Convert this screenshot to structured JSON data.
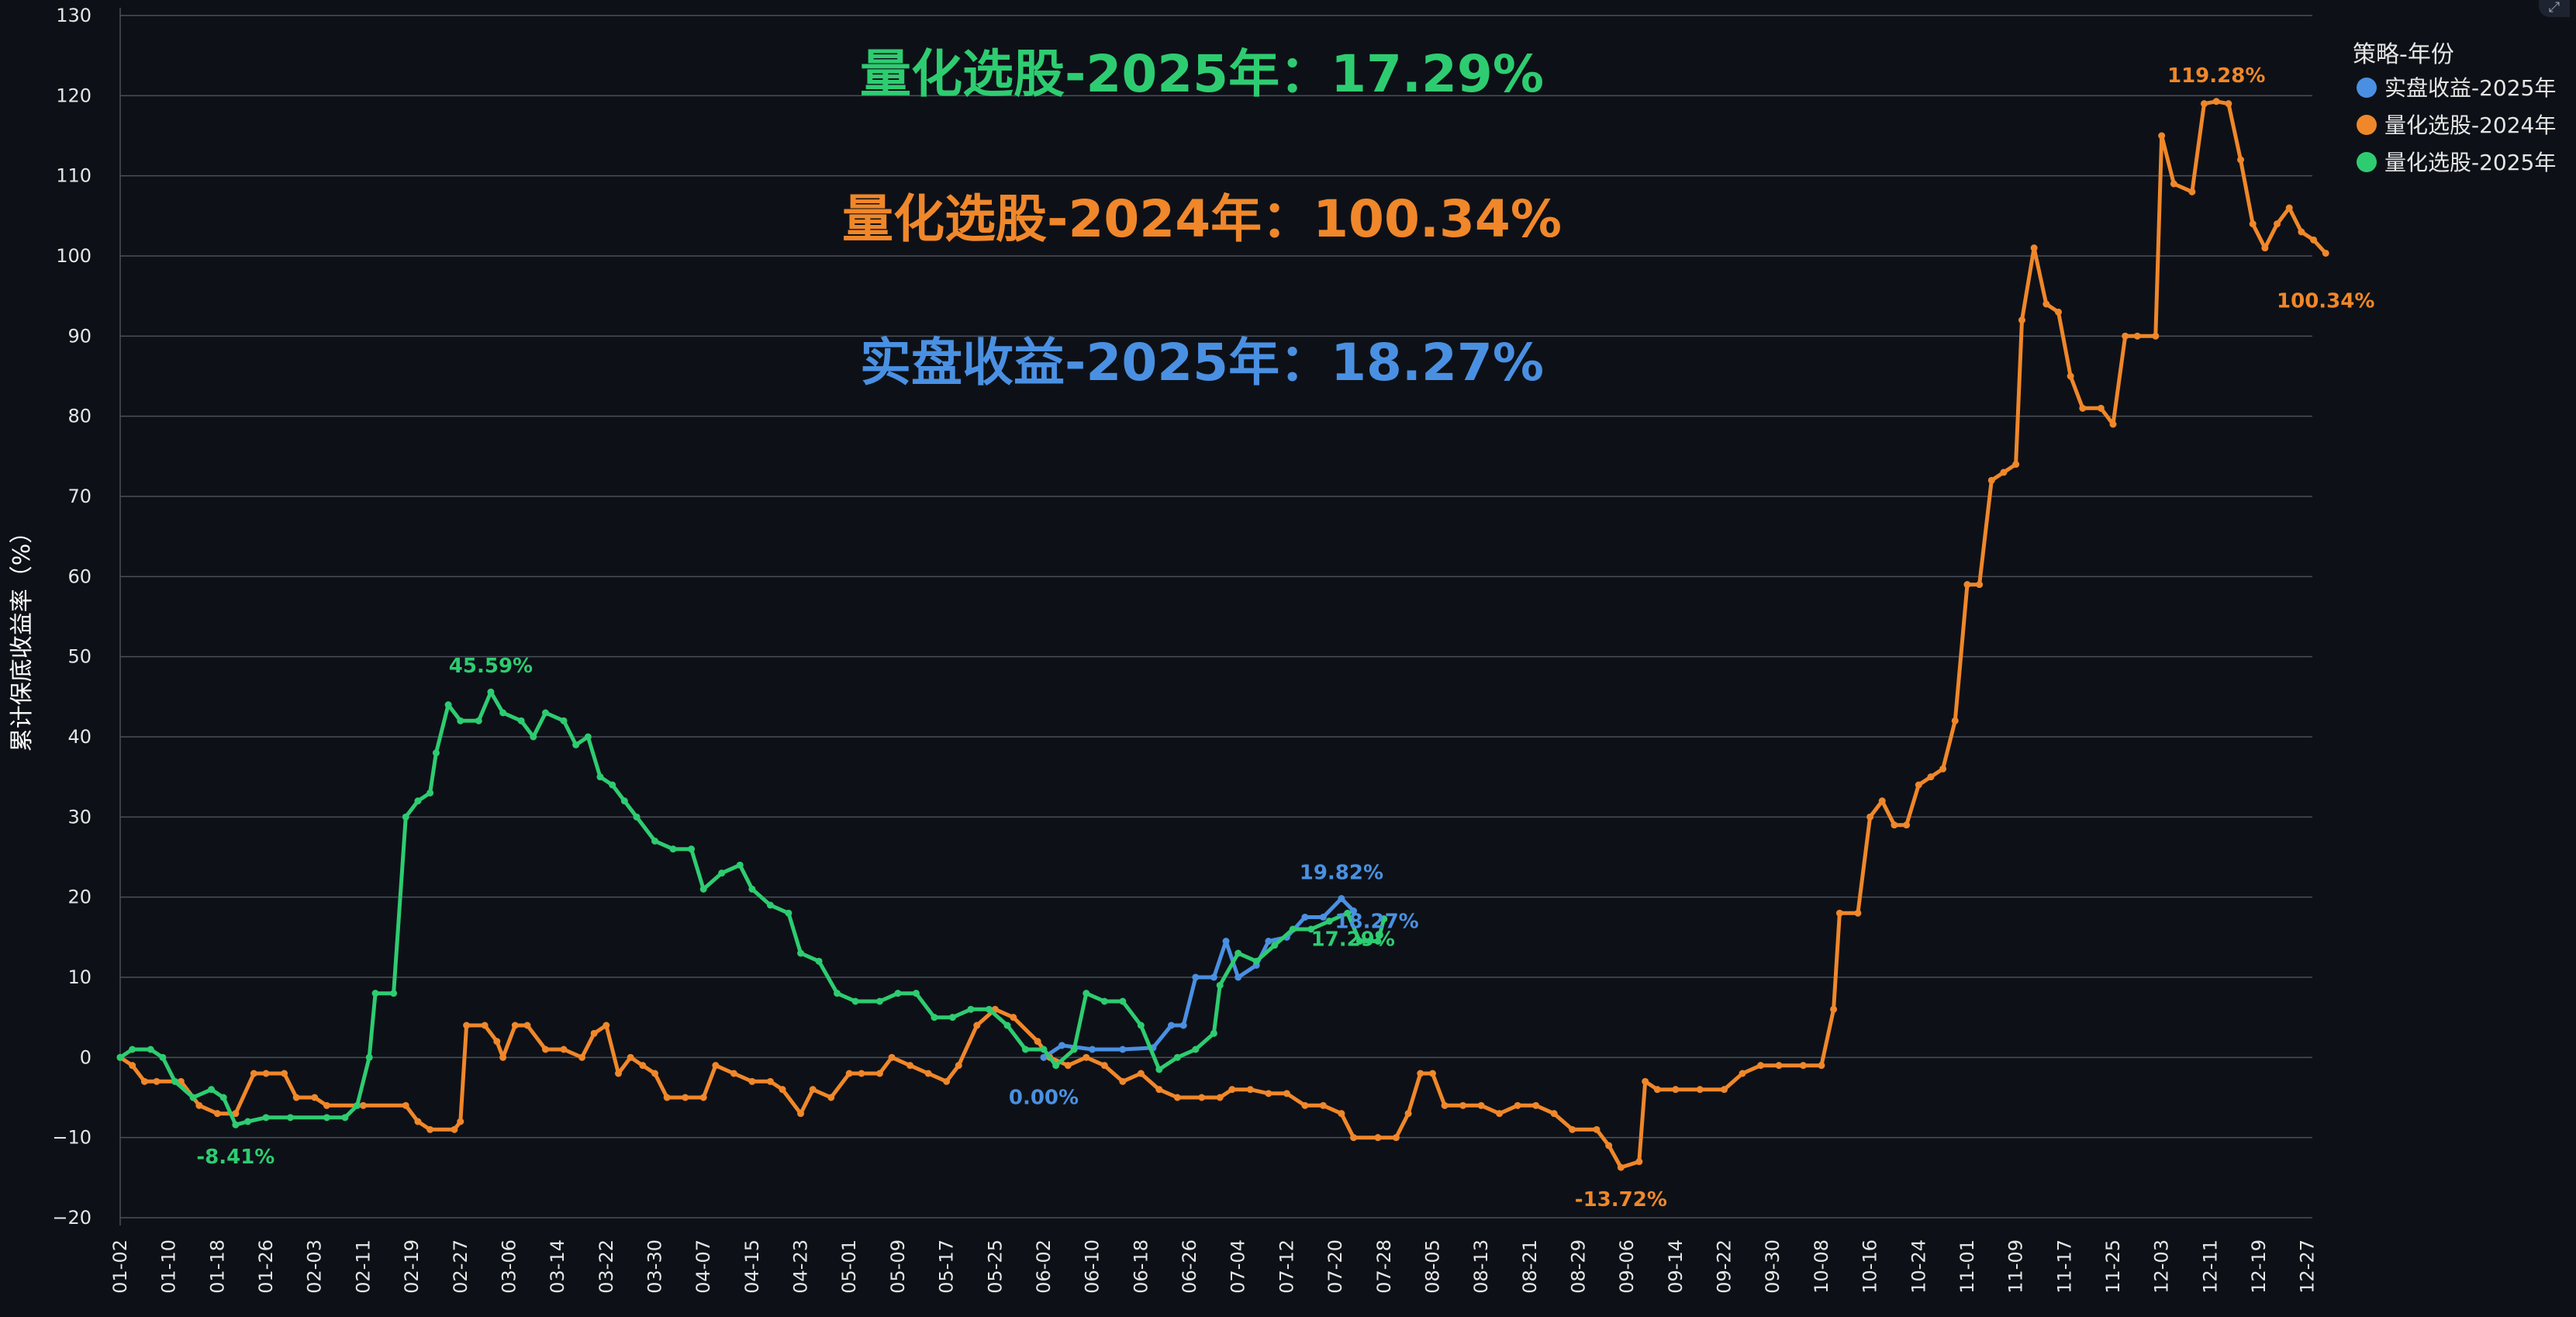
{
  "chart_data": {
    "type": "line",
    "ylabel": "累计保底收益率（%）",
    "ylim": [
      -20,
      130
    ],
    "yticks": [
      -20,
      -10,
      0,
      10,
      20,
      30,
      40,
      50,
      60,
      70,
      80,
      90,
      100,
      110,
      120,
      130
    ],
    "x_ticks": [
      "01-02",
      "01-10",
      "01-18",
      "01-26",
      "02-03",
      "02-11",
      "02-19",
      "02-27",
      "03-06",
      "03-14",
      "03-22",
      "03-30",
      "04-07",
      "04-15",
      "04-23",
      "05-01",
      "05-09",
      "05-17",
      "05-25",
      "06-02",
      "06-10",
      "06-18",
      "06-26",
      "07-04",
      "07-12",
      "07-20",
      "07-28",
      "08-05",
      "08-13",
      "08-21",
      "08-29",
      "09-06",
      "09-14",
      "09-22",
      "09-30",
      "10-08",
      "10-16",
      "10-24",
      "11-01",
      "11-09",
      "11-17",
      "11-25",
      "12-03",
      "12-11",
      "12-19",
      "12-27"
    ],
    "grid": true,
    "legend": {
      "title": "策略-年份",
      "position": "top-right"
    },
    "headlines": [
      {
        "text": "量化选股-2025年：17.29%",
        "color": "#2ecc71"
      },
      {
        "text": "量化选股-2024年：100.34%",
        "color": "#f0872a"
      },
      {
        "text": "实盘收益-2025年：18.27%",
        "color": "#4a90e2"
      }
    ],
    "series": [
      {
        "name": "实盘收益-2025年",
        "color": "#4a90e2",
        "points": [
          [
            "06-02",
            0.0
          ],
          [
            "06-05",
            1.5
          ],
          [
            "06-10",
            1.0
          ],
          [
            "06-15",
            1.0
          ],
          [
            "06-20",
            1.2
          ],
          [
            "06-23",
            4.0
          ],
          [
            "06-25",
            4.0
          ],
          [
            "06-27",
            10.0
          ],
          [
            "06-30",
            10.0
          ],
          [
            "07-02",
            14.5
          ],
          [
            "07-04",
            10.0
          ],
          [
            "07-07",
            11.5
          ],
          [
            "07-09",
            14.5
          ],
          [
            "07-12",
            15.0
          ],
          [
            "07-15",
            17.5
          ],
          [
            "07-18",
            17.5
          ],
          [
            "07-21",
            19.82
          ],
          [
            "07-23",
            18.27
          ]
        ],
        "annotations": [
          {
            "x": "06-02",
            "y": 0.0,
            "text": "0.00%"
          },
          {
            "x": "07-21",
            "y": 19.82,
            "text": "19.82%"
          },
          {
            "x": "07-23",
            "y": 18.27,
            "text": "18.27%"
          }
        ]
      },
      {
        "name": "量化选股-2024年",
        "color": "#f0872a",
        "points": [
          [
            "01-02",
            0
          ],
          [
            "01-04",
            -1
          ],
          [
            "01-06",
            -3
          ],
          [
            "01-08",
            -3
          ],
          [
            "01-12",
            -3
          ],
          [
            "01-15",
            -6
          ],
          [
            "01-18",
            -7
          ],
          [
            "01-21",
            -7
          ],
          [
            "01-24",
            -2
          ],
          [
            "01-26",
            -2
          ],
          [
            "01-29",
            -2
          ],
          [
            "01-31",
            -5
          ],
          [
            "02-03",
            -5
          ],
          [
            "02-05",
            -6
          ],
          [
            "02-11",
            -6
          ],
          [
            "02-18",
            -6
          ],
          [
            "02-20",
            -8
          ],
          [
            "02-22",
            -9
          ],
          [
            "02-26",
            -9
          ],
          [
            "02-27",
            -8
          ],
          [
            "02-28",
            4
          ],
          [
            "03-02",
            4
          ],
          [
            "03-04",
            2
          ],
          [
            "03-05",
            0
          ],
          [
            "03-07",
            4
          ],
          [
            "03-09",
            4
          ],
          [
            "03-12",
            1
          ],
          [
            "03-15",
            1
          ],
          [
            "03-18",
            0
          ],
          [
            "03-20",
            3
          ],
          [
            "03-22",
            4
          ],
          [
            "03-24",
            -2
          ],
          [
            "03-26",
            0
          ],
          [
            "03-28",
            -1
          ],
          [
            "03-30",
            -2
          ],
          [
            "04-01",
            -5
          ],
          [
            "04-04",
            -5
          ],
          [
            "04-07",
            -5
          ],
          [
            "04-09",
            -1
          ],
          [
            "04-12",
            -2
          ],
          [
            "04-15",
            -3
          ],
          [
            "04-18",
            -3
          ],
          [
            "04-20",
            -4
          ],
          [
            "04-23",
            -7
          ],
          [
            "04-25",
            -4
          ],
          [
            "04-28",
            -5
          ],
          [
            "05-01",
            -2
          ],
          [
            "05-03",
            -2
          ],
          [
            "05-06",
            -2
          ],
          [
            "05-08",
            0
          ],
          [
            "05-11",
            -1
          ],
          [
            "05-14",
            -2
          ],
          [
            "05-17",
            -3
          ],
          [
            "05-19",
            -1
          ],
          [
            "05-22",
            4
          ],
          [
            "05-25",
            6
          ],
          [
            "05-28",
            5
          ],
          [
            "06-01",
            2
          ],
          [
            "06-03",
            0
          ],
          [
            "06-06",
            -1
          ],
          [
            "06-09",
            0
          ],
          [
            "06-12",
            -1
          ],
          [
            "06-15",
            -3
          ],
          [
            "06-18",
            -2
          ],
          [
            "06-21",
            -4
          ],
          [
            "06-24",
            -5
          ],
          [
            "06-28",
            -5
          ],
          [
            "07-01",
            -5
          ],
          [
            "07-03",
            -4
          ],
          [
            "07-06",
            -4
          ],
          [
            "07-09",
            -4.5
          ],
          [
            "07-12",
            -4.5
          ],
          [
            "07-15",
            -6
          ],
          [
            "07-18",
            -6
          ],
          [
            "07-21",
            -7
          ],
          [
            "07-23",
            -10
          ],
          [
            "07-27",
            -10
          ],
          [
            "07-30",
            -10
          ],
          [
            "08-01",
            -7
          ],
          [
            "08-03",
            -2
          ],
          [
            "08-05",
            -2
          ],
          [
            "08-07",
            -6
          ],
          [
            "08-10",
            -6
          ],
          [
            "08-13",
            -6
          ],
          [
            "08-16",
            -7
          ],
          [
            "08-19",
            -6
          ],
          [
            "08-22",
            -6
          ],
          [
            "08-25",
            -7
          ],
          [
            "08-28",
            -9
          ],
          [
            "09-01",
            -9
          ],
          [
            "09-03",
            -11
          ],
          [
            "09-05",
            -13.72
          ],
          [
            "09-08",
            -13
          ],
          [
            "09-09",
            -3
          ],
          [
            "09-11",
            -4
          ],
          [
            "09-14",
            -4
          ],
          [
            "09-18",
            -4
          ],
          [
            "09-22",
            -4
          ],
          [
            "09-25",
            -2
          ],
          [
            "09-28",
            -1
          ],
          [
            "10-01",
            -1
          ],
          [
            "10-05",
            -1
          ],
          [
            "10-08",
            -1
          ],
          [
            "10-10",
            6
          ],
          [
            "10-11",
            18
          ],
          [
            "10-14",
            18
          ],
          [
            "10-16",
            30
          ],
          [
            "10-18",
            32
          ],
          [
            "10-20",
            29
          ],
          [
            "10-22",
            29
          ],
          [
            "10-24",
            34
          ],
          [
            "10-26",
            35
          ],
          [
            "10-28",
            36
          ],
          [
            "10-30",
            42
          ],
          [
            "11-01",
            59
          ],
          [
            "11-03",
            59
          ],
          [
            "11-05",
            72
          ],
          [
            "11-07",
            73
          ],
          [
            "11-09",
            74
          ],
          [
            "11-10",
            92
          ],
          [
            "11-12",
            101
          ],
          [
            "11-14",
            94
          ],
          [
            "11-16",
            93
          ],
          [
            "11-18",
            85
          ],
          [
            "11-20",
            81
          ],
          [
            "11-23",
            81
          ],
          [
            "11-25",
            79
          ],
          [
            "11-27",
            90
          ],
          [
            "11-29",
            90
          ],
          [
            "12-02",
            90
          ],
          [
            "12-03",
            115
          ],
          [
            "12-05",
            109
          ],
          [
            "12-08",
            108
          ],
          [
            "12-10",
            119
          ],
          [
            "12-12",
            119.28
          ],
          [
            "12-14",
            119
          ],
          [
            "12-16",
            112
          ],
          [
            "12-18",
            104
          ],
          [
            "12-20",
            101
          ],
          [
            "12-22",
            104
          ],
          [
            "12-24",
            106
          ],
          [
            "12-26",
            103
          ],
          [
            "12-28",
            102
          ],
          [
            "12-30",
            100.34
          ]
        ],
        "annotations": [
          {
            "x": "12-12",
            "y": 119.28,
            "text": "119.28%"
          },
          {
            "x": "12-30",
            "y": 100.34,
            "text": "100.34%"
          },
          {
            "x": "09-05",
            "y": -13.72,
            "text": "-13.72%"
          }
        ]
      },
      {
        "name": "量化选股-2025年",
        "color": "#2ecc71",
        "points": [
          [
            "01-02",
            0
          ],
          [
            "01-04",
            1
          ],
          [
            "01-07",
            1
          ],
          [
            "01-09",
            0
          ],
          [
            "01-11",
            -3
          ],
          [
            "01-14",
            -5
          ],
          [
            "01-17",
            -4
          ],
          [
            "01-19",
            -5
          ],
          [
            "01-21",
            -8.41
          ],
          [
            "01-23",
            -8
          ],
          [
            "01-26",
            -7.5
          ],
          [
            "01-30",
            -7.5
          ],
          [
            "02-05",
            -7.5
          ],
          [
            "02-08",
            -7.5
          ],
          [
            "02-10",
            -6
          ],
          [
            "02-12",
            0
          ],
          [
            "02-13",
            8
          ],
          [
            "02-16",
            8
          ],
          [
            "02-18",
            30
          ],
          [
            "02-20",
            32
          ],
          [
            "02-22",
            33
          ],
          [
            "02-23",
            38
          ],
          [
            "02-25",
            44
          ],
          [
            "02-27",
            42
          ],
          [
            "03-01",
            42
          ],
          [
            "03-03",
            45.59
          ],
          [
            "03-05",
            43
          ],
          [
            "03-08",
            42
          ],
          [
            "03-10",
            40
          ],
          [
            "03-12",
            43
          ],
          [
            "03-15",
            42
          ],
          [
            "03-17",
            39
          ],
          [
            "03-19",
            40
          ],
          [
            "03-21",
            35
          ],
          [
            "03-23",
            34
          ],
          [
            "03-25",
            32
          ],
          [
            "03-27",
            30
          ],
          [
            "03-30",
            27
          ],
          [
            "04-02",
            26
          ],
          [
            "04-05",
            26
          ],
          [
            "04-07",
            21
          ],
          [
            "04-10",
            23
          ],
          [
            "04-13",
            24
          ],
          [
            "04-15",
            21
          ],
          [
            "04-18",
            19
          ],
          [
            "04-21",
            18
          ],
          [
            "04-23",
            13
          ],
          [
            "04-26",
            12
          ],
          [
            "04-29",
            8
          ],
          [
            "05-02",
            7
          ],
          [
            "05-06",
            7
          ],
          [
            "05-09",
            8
          ],
          [
            "05-12",
            8
          ],
          [
            "05-15",
            5
          ],
          [
            "05-18",
            5
          ],
          [
            "05-21",
            6
          ],
          [
            "05-24",
            6
          ],
          [
            "05-27",
            4
          ],
          [
            "05-30",
            1
          ],
          [
            "06-02",
            1
          ],
          [
            "06-04",
            -1
          ],
          [
            "06-07",
            1
          ],
          [
            "06-09",
            8
          ],
          [
            "06-12",
            7
          ],
          [
            "06-15",
            7
          ],
          [
            "06-18",
            4
          ],
          [
            "06-21",
            -1.5
          ],
          [
            "06-24",
            0
          ],
          [
            "06-27",
            1
          ],
          [
            "06-30",
            3
          ],
          [
            "07-01",
            9
          ],
          [
            "07-04",
            13
          ],
          [
            "07-07",
            12
          ],
          [
            "07-10",
            14
          ],
          [
            "07-13",
            16
          ],
          [
            "07-16",
            16
          ],
          [
            "07-19",
            17
          ],
          [
            "07-22",
            18
          ],
          [
            "07-24",
            14.5
          ],
          [
            "07-27",
            14.5
          ],
          [
            "07-28",
            17.29
          ]
        ],
        "annotations": [
          {
            "x": "03-03",
            "y": 45.59,
            "text": "45.59%"
          },
          {
            "x": "01-21",
            "y": -8.41,
            "text": "-8.41%"
          },
          {
            "x": "07-28",
            "y": 17.29,
            "text": "17.29%"
          }
        ]
      }
    ]
  }
}
